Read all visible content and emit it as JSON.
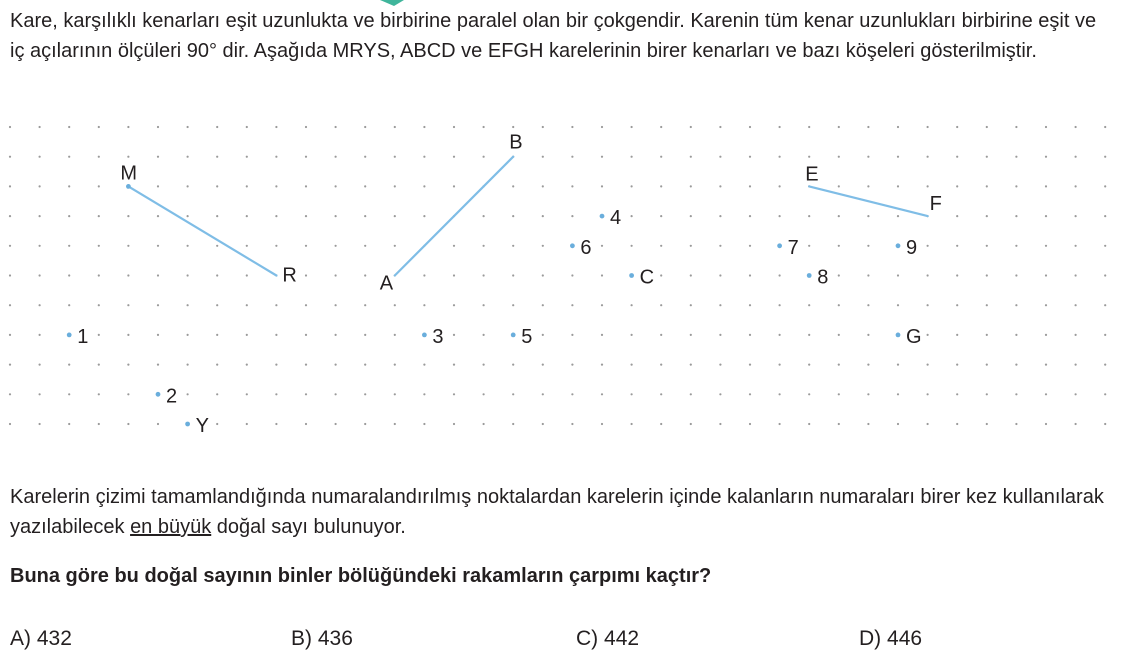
{
  "intro": "Kare, karşılıklı kenarları eşit uzunlukta ve birbirine paralel olan bir çokgendir. Karenin tüm kenar uzunlukları birbirine eşit ve iç açılarının ölçüleri 90° dir. Aşağıda MRYS, ABCD ve EFGH karelerinin birer kenarları ve bazı köşeleri gösterilmiştir.",
  "desc": {
    "before": "Karelerin çizimi tamamlandığında numaralandırılmış noktalardan karelerin içinde kalanların numaraları birer kez kullanılarak yazılabilecek ",
    "underlined": "en büyük",
    "after": " doğal sayı bulunuyor."
  },
  "question": "Buna göre bu doğal sayının binler bölüğündeki rakamların çarpımı kaçtır?",
  "options": [
    {
      "letter": "A)",
      "value": "432"
    },
    {
      "letter": "B)",
      "value": "436"
    },
    {
      "letter": "C)",
      "value": "442"
    },
    {
      "letter": "D)",
      "value": "446"
    }
  ],
  "colors": {
    "segment": "#7fbde6",
    "dot": "#6aaedc",
    "grid_dot": "#9a9a9a",
    "text": "#231f20"
  },
  "vertices": [
    "M",
    "R",
    "Y",
    "A",
    "B",
    "C",
    "E",
    "F",
    "G"
  ],
  "numbered_points": [
    "1",
    "2",
    "3",
    "4",
    "5",
    "6",
    "7",
    "8",
    "9"
  ]
}
